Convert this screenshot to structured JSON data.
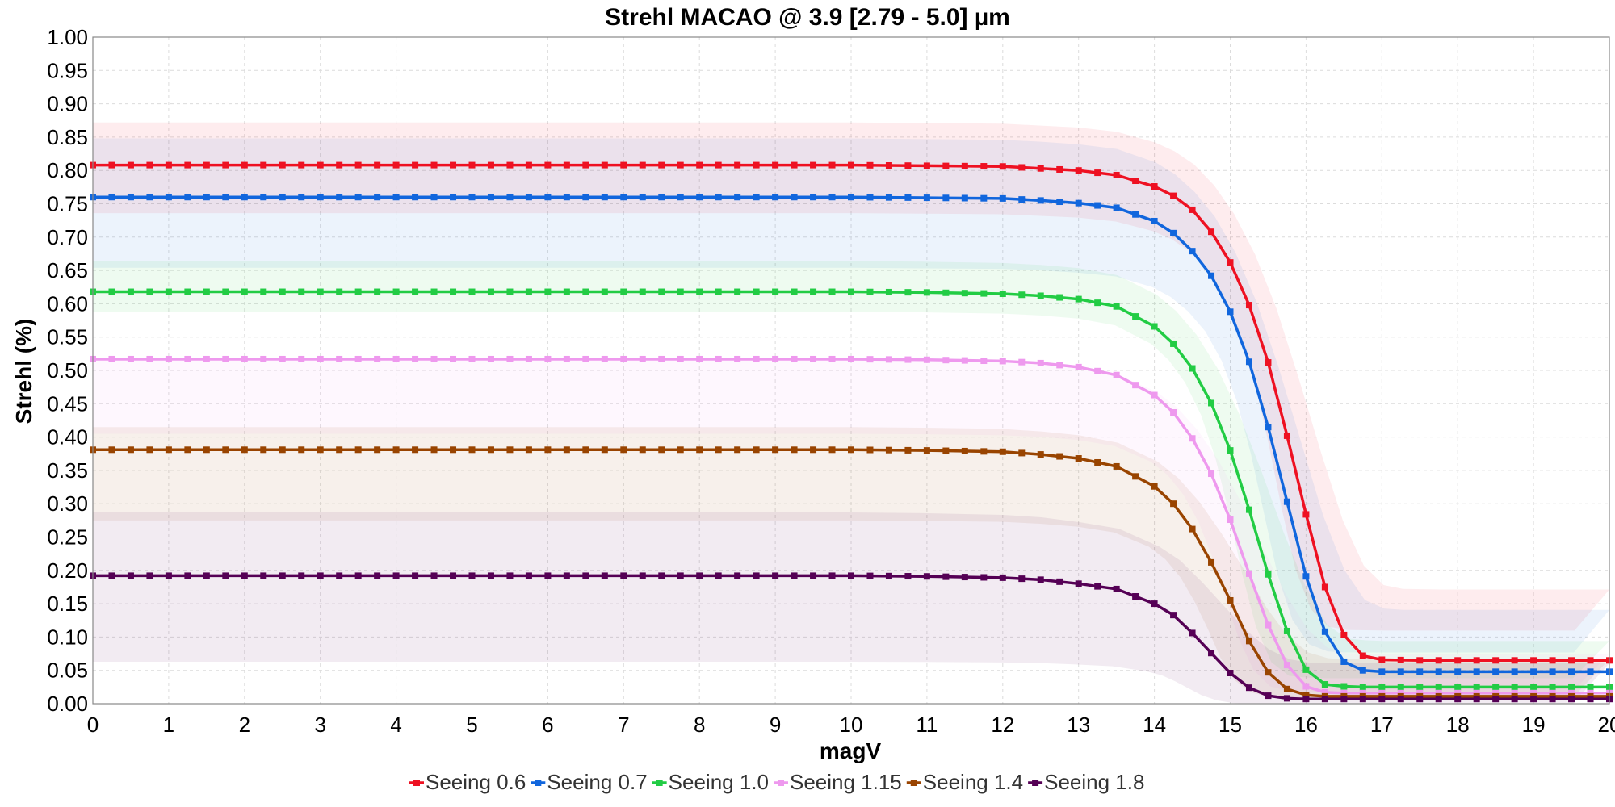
{
  "chart_data": {
    "type": "line",
    "title": "Strehl MACAO @ 3.9 [2.79 - 5.0] µm",
    "xlabel": "magV",
    "ylabel": "Strehl (%)",
    "xlim": [
      0,
      20
    ],
    "ylim": [
      0,
      1.0
    ],
    "x_ticks": [
      "0",
      "1",
      "2",
      "3",
      "4",
      "5",
      "6",
      "7",
      "8",
      "9",
      "10",
      "11",
      "12",
      "13",
      "14",
      "15",
      "16",
      "17",
      "18",
      "19",
      "20"
    ],
    "y_ticks": [
      "0.00",
      "0.05",
      "0.10",
      "0.15",
      "0.20",
      "0.25",
      "0.30",
      "0.35",
      "0.40",
      "0.45",
      "0.50",
      "0.55",
      "0.60",
      "0.65",
      "0.70",
      "0.75",
      "0.80",
      "0.85",
      "0.90",
      "0.95",
      "1.00"
    ],
    "grid": true,
    "legend_position": "bottom-center",
    "x": [
      0,
      2,
      4,
      6,
      8,
      10,
      11,
      12,
      12.5,
      13,
      13.5,
      14,
      14.25,
      14.5,
      14.75,
      15,
      15.25,
      15.5,
      15.75,
      16,
      16.25,
      16.5,
      16.75,
      17,
      17.5,
      18,
      19,
      20
    ],
    "series": [
      {
        "name": "Seeing 0.6",
        "color": "#ee1122",
        "values": [
          0.808,
          0.808,
          0.808,
          0.808,
          0.808,
          0.808,
          0.807,
          0.806,
          0.803,
          0.8,
          0.793,
          0.776,
          0.762,
          0.741,
          0.708,
          0.662,
          0.598,
          0.512,
          0.402,
          0.284,
          0.175,
          0.103,
          0.072,
          0.066,
          0.065,
          0.065,
          0.065,
          0.065
        ],
        "band": [
          0.746,
          0.872
        ]
      },
      {
        "name": "Seeing 0.7",
        "color": "#1166dd",
        "values": [
          0.76,
          0.76,
          0.76,
          0.76,
          0.76,
          0.76,
          0.759,
          0.758,
          0.755,
          0.751,
          0.744,
          0.724,
          0.706,
          0.679,
          0.642,
          0.588,
          0.513,
          0.415,
          0.303,
          0.191,
          0.108,
          0.063,
          0.05,
          0.048,
          0.048,
          0.048,
          0.048,
          0.048
        ],
        "band": [
          0.664,
          0.848
        ]
      },
      {
        "name": "Seeing 1.0",
        "color": "#22cc44",
        "values": [
          0.618,
          0.618,
          0.618,
          0.618,
          0.618,
          0.618,
          0.617,
          0.615,
          0.612,
          0.607,
          0.596,
          0.566,
          0.54,
          0.503,
          0.451,
          0.38,
          0.291,
          0.194,
          0.109,
          0.051,
          0.029,
          0.026,
          0.025,
          0.025,
          0.025,
          0.025,
          0.025,
          0.025
        ],
        "band": [
          0.598,
          0.664
        ]
      },
      {
        "name": "Seeing 1.15",
        "color": "#ee99ee",
        "values": [
          0.517,
          0.517,
          0.517,
          0.517,
          0.517,
          0.517,
          0.516,
          0.514,
          0.511,
          0.505,
          0.493,
          0.463,
          0.437,
          0.398,
          0.345,
          0.276,
          0.195,
          0.118,
          0.058,
          0.026,
          0.017,
          0.016,
          0.016,
          0.016,
          0.016,
          0.016,
          0.016,
          0.016
        ],
        "band": [
          0.415,
          0.515
        ]
      },
      {
        "name": "Seeing 1.4",
        "color": "#994400",
        "values": [
          0.381,
          0.381,
          0.381,
          0.381,
          0.381,
          0.381,
          0.38,
          0.378,
          0.374,
          0.368,
          0.356,
          0.326,
          0.3,
          0.262,
          0.212,
          0.155,
          0.094,
          0.047,
          0.022,
          0.013,
          0.011,
          0.011,
          0.011,
          0.011,
          0.011,
          0.011,
          0.011,
          0.011
        ],
        "band": [
          0.285,
          0.415
        ]
      },
      {
        "name": "Seeing 1.8",
        "color": "#550055",
        "values": [
          0.192,
          0.192,
          0.192,
          0.192,
          0.192,
          0.192,
          0.191,
          0.189,
          0.186,
          0.18,
          0.172,
          0.15,
          0.133,
          0.106,
          0.076,
          0.046,
          0.024,
          0.012,
          0.008,
          0.007,
          0.007,
          0.007,
          0.007,
          0.007,
          0.007,
          0.007,
          0.007,
          0.007
        ],
        "band": [
          0.073,
          0.287
        ]
      }
    ]
  }
}
